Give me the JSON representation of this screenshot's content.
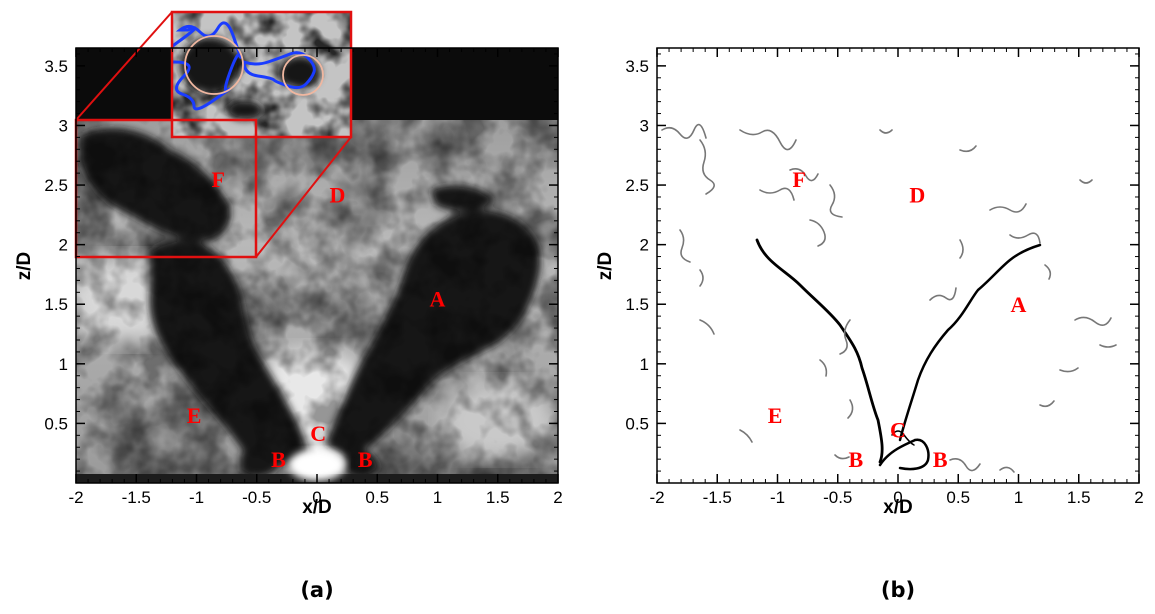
{
  "colors": {
    "label": "#ff0000",
    "inset": "#e01010",
    "contour": "#1a3cff",
    "circle": "#f0b7a0"
  },
  "panels": [
    {
      "id": "a",
      "caption": "(a)",
      "xlabel": "x/D",
      "ylabel": "z/D",
      "xlim": [
        -2,
        2
      ],
      "ylim": [
        0,
        3.65
      ],
      "xticks": [
        "-2",
        "-1.5",
        "-1",
        "-0.5",
        "0",
        "0.5",
        "1",
        "1.5",
        "2"
      ],
      "yticks": [
        "0.5",
        "1",
        "1.5",
        "2",
        "2.5",
        "3",
        "3.5"
      ],
      "regions": [
        {
          "label": "A",
          "x": 1.0,
          "z": 1.55
        },
        {
          "label": "B",
          "x": -0.32,
          "z": 0.2
        },
        {
          "label": "B",
          "x": 0.4,
          "z": 0.2
        },
        {
          "label": "C",
          "x": 0.01,
          "z": 0.42
        },
        {
          "label": "D",
          "x": 0.17,
          "z": 2.42
        },
        {
          "label": "E",
          "x": -1.02,
          "z": 0.57
        },
        {
          "label": "F",
          "x": -0.82,
          "z": 2.55
        }
      ]
    },
    {
      "id": "b",
      "caption": "(b)",
      "xlabel": "x/D",
      "ylabel": "z/D",
      "xlim": [
        -2,
        2
      ],
      "ylim": [
        0,
        3.65
      ],
      "xticks": [
        "-2",
        "-1.5",
        "-1",
        "-0.5",
        "0",
        "0.5",
        "1",
        "1.5",
        "2"
      ],
      "yticks": [
        "0.5",
        "1",
        "1.5",
        "2",
        "2.5",
        "3",
        "3.5"
      ],
      "regions": [
        {
          "label": "A",
          "x": 1.0,
          "z": 1.5
        },
        {
          "label": "B",
          "x": -0.35,
          "z": 0.2
        },
        {
          "label": "B",
          "x": 0.35,
          "z": 0.2
        },
        {
          "label": "C",
          "x": 0.0,
          "z": 0.45
        },
        {
          "label": "D",
          "x": 0.16,
          "z": 2.42
        },
        {
          "label": "E",
          "x": -1.02,
          "z": 0.57
        },
        {
          "label": "F",
          "x": -0.82,
          "z": 2.55
        }
      ]
    }
  ]
}
